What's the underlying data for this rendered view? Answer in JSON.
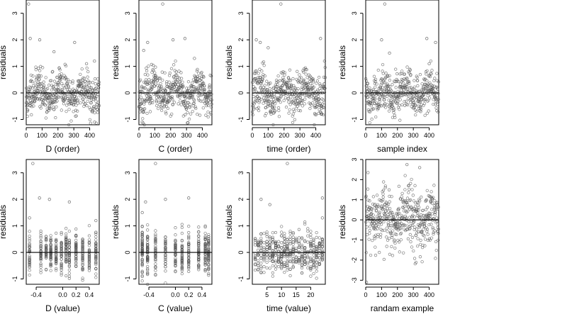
{
  "style": {
    "point_color": "#555555",
    "line_color": "#000000",
    "background": "#ffffff"
  },
  "chart_data": [
    {
      "type": "scatter",
      "xlabel": "D (order)",
      "ylabel": "residuals",
      "xlim": [
        0,
        460
      ],
      "ylim": [
        -1.2,
        3.5
      ],
      "xticks": [
        0,
        100,
        200,
        300,
        400
      ],
      "yticks": [
        -1,
        0,
        1,
        2,
        3
      ],
      "hline": 0,
      "n_points": 460,
      "x_kind": "index",
      "y_range": [
        -1.2,
        1.2
      ],
      "seed": 11,
      "outliers": [
        [
          15,
          3.35
        ],
        [
          25,
          2.05
        ],
        [
          85,
          2.0
        ],
        [
          175,
          1.55
        ],
        [
          305,
          1.9
        ],
        [
          380,
          1.1
        ],
        [
          430,
          1.2
        ]
      ]
    },
    {
      "type": "scatter",
      "xlabel": "C (order)",
      "ylabel": "residuals",
      "xlim": [
        0,
        460
      ],
      "ylim": [
        -1.2,
        3.5
      ],
      "xticks": [
        0,
        100,
        200,
        300,
        400
      ],
      "yticks": [
        -1,
        0,
        1,
        2,
        3
      ],
      "hline": 0,
      "n_points": 460,
      "x_kind": "index",
      "y_range": [
        -1.2,
        1.2
      ],
      "seed": 23,
      "outliers": [
        [
          150,
          3.35
        ],
        [
          215,
          2.0
        ],
        [
          290,
          2.05
        ],
        [
          55,
          1.9
        ],
        [
          30,
          1.6
        ],
        [
          350,
          1.3
        ]
      ]
    },
    {
      "type": "scatter",
      "xlabel": "time (order)",
      "ylabel": "residuals",
      "xlim": [
        0,
        460
      ],
      "ylim": [
        -1.2,
        3.5
      ],
      "xticks": [
        0,
        100,
        200,
        300,
        400
      ],
      "yticks": [
        -1,
        0,
        1,
        2,
        3
      ],
      "hline": 0,
      "n_points": 460,
      "x_kind": "index",
      "y_range": [
        -1.2,
        1.2
      ],
      "seed": 37,
      "outliers": [
        [
          180,
          3.35
        ],
        [
          25,
          2.0
        ],
        [
          50,
          1.9
        ],
        [
          100,
          1.7
        ],
        [
          430,
          2.05
        ],
        [
          455,
          1.2
        ]
      ]
    },
    {
      "type": "scatter",
      "xlabel": "sample index",
      "ylabel": "residuals",
      "xlim": [
        0,
        460
      ],
      "ylim": [
        -1.2,
        3.5
      ],
      "xticks": [
        0,
        100,
        200,
        300,
        400
      ],
      "yticks": [
        -1,
        0,
        1,
        2,
        3
      ],
      "hline": 0,
      "n_points": 460,
      "x_kind": "index",
      "y_range": [
        -1.2,
        1.2
      ],
      "seed": 41,
      "outliers": [
        [
          120,
          3.35
        ],
        [
          100,
          2.0
        ],
        [
          385,
          2.05
        ],
        [
          440,
          1.9
        ],
        [
          150,
          1.5
        ],
        [
          400,
          1.1
        ]
      ]
    },
    {
      "type": "scatter",
      "xlabel": "D (value)",
      "ylabel": "residuals",
      "xlim": [
        -0.55,
        0.55
      ],
      "ylim": [
        -1.2,
        3.5
      ],
      "xticks": [
        -0.4,
        0.0,
        0.2,
        0.4
      ],
      "xticklabels": [
        "-0.4",
        "0.0",
        "0.2",
        "0.4"
      ],
      "yticks": [
        -1,
        0,
        1,
        2,
        3
      ],
      "hline": 0,
      "n_points": 460,
      "x_kind": "grouped",
      "x_groups": [
        -0.5,
        -0.33,
        -0.25,
        -0.18,
        -0.1,
        -0.02,
        0.05,
        0.1,
        0.2,
        0.3,
        0.4,
        0.5
      ],
      "y_range": [
        -1.2,
        1.2
      ],
      "seed": 53,
      "outliers": [
        [
          -0.45,
          3.35
        ],
        [
          -0.35,
          2.05
        ],
        [
          -0.2,
          2.0
        ],
        [
          0.1,
          1.9
        ],
        [
          -0.5,
          1.3
        ],
        [
          0.5,
          1.2
        ]
      ]
    },
    {
      "type": "scatter",
      "xlabel": "C (value)",
      "ylabel": "residuals",
      "xlim": [
        -0.55,
        0.55
      ],
      "ylim": [
        -1.2,
        3.5
      ],
      "xticks": [
        -0.4,
        0.0,
        0.2,
        0.4
      ],
      "xticklabels": [
        "-0.4",
        "0.0",
        "0.2",
        "0.4"
      ],
      "yticks": [
        -1,
        0,
        1,
        2,
        3
      ],
      "hline": 0,
      "n_points": 460,
      "x_kind": "grouped",
      "x_groups": [
        -0.5,
        -0.42,
        -0.3,
        -0.15,
        0.0,
        0.1,
        0.2,
        0.35,
        0.45,
        0.5
      ],
      "y_range": [
        -1.2,
        1.2
      ],
      "seed": 67,
      "outliers": [
        [
          -0.3,
          3.35
        ],
        [
          -0.15,
          2.0
        ],
        [
          0.2,
          2.05
        ],
        [
          -0.45,
          1.9
        ],
        [
          -0.5,
          1.5
        ]
      ]
    },
    {
      "type": "scatter",
      "xlabel": "time (value)",
      "ylabel": "residuals",
      "xlim": [
        0,
        25
      ],
      "ylim": [
        -1.2,
        3.5
      ],
      "xticks": [
        5,
        10,
        15,
        20
      ],
      "xticklabels": [
        "5",
        "10",
        "15",
        "20"
      ],
      "yticks": [
        -1,
        0,
        1,
        2,
        3
      ],
      "hline": 0,
      "n_points": 460,
      "x_kind": "grouped",
      "x_groups": [
        1,
        2,
        3,
        4,
        5,
        6,
        7,
        8,
        9,
        10,
        11,
        12,
        13,
        14,
        15,
        16,
        17,
        18,
        19,
        20,
        21,
        22,
        23,
        24
      ],
      "y_range": [
        -1.2,
        1.2
      ],
      "seed": 79,
      "outliers": [
        [
          12,
          3.35
        ],
        [
          3,
          2.0
        ],
        [
          6,
          1.8
        ],
        [
          24,
          2.05
        ],
        [
          24,
          1.3
        ]
      ]
    },
    {
      "type": "scatter",
      "xlabel": "randam example",
      "ylabel": "residuals",
      "xlim": [
        0,
        460
      ],
      "ylim": [
        -3.2,
        3.0
      ],
      "xticks": [
        0,
        100,
        200,
        300,
        400
      ],
      "yticks": [
        -3,
        -2,
        -1,
        0,
        1,
        2,
        3
      ],
      "hline": 0,
      "n_points": 460,
      "x_kind": "index",
      "y_range": [
        -2.6,
        2.6
      ],
      "seed": 97,
      "outliers": [
        [
          5,
          -3.1
        ],
        [
          260,
          2.75
        ],
        [
          340,
          2.6
        ]
      ]
    }
  ]
}
